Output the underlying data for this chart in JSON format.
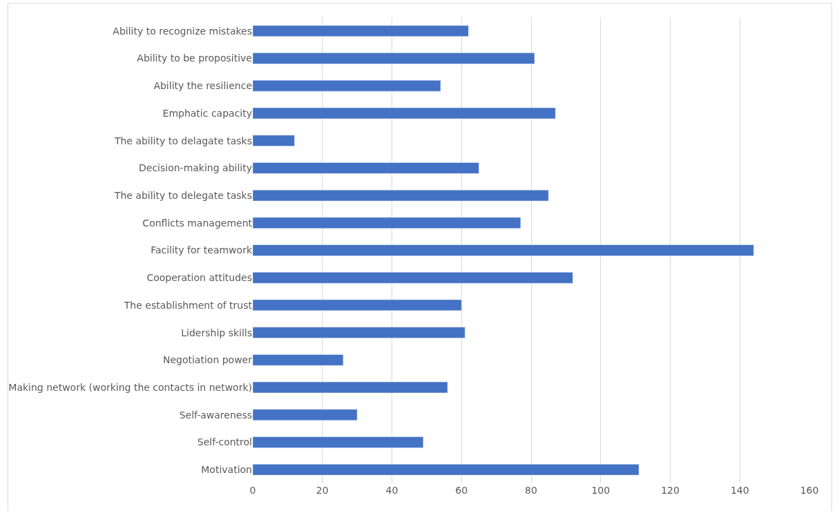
{
  "chart_data": {
    "type": "bar",
    "orientation": "horizontal",
    "categories": [
      "Ability to recognize mistakes",
      "Ability to be propositive",
      "Ability the resilience",
      "Emphatic capacity",
      "The ability to delagate tasks",
      "Decision-making ability",
      "The ability to delegate tasks",
      "Conflicts management",
      "Facility for teamwork",
      "Cooperation attitudes",
      "The establishment of trust",
      "Lidership skills",
      "Negotiation power",
      "Making network (working the contacts in network)",
      "Self-awareness",
      "Self-control",
      "Motivation"
    ],
    "values": [
      62,
      81,
      54,
      87,
      12,
      65,
      85,
      77,
      144,
      92,
      60,
      61,
      26,
      56,
      30,
      49,
      111
    ],
    "color": "#4472c4",
    "xlim": [
      0,
      160
    ],
    "xticks": [
      0,
      20,
      40,
      60,
      80,
      100,
      120,
      140,
      160
    ],
    "grid": "x"
  }
}
